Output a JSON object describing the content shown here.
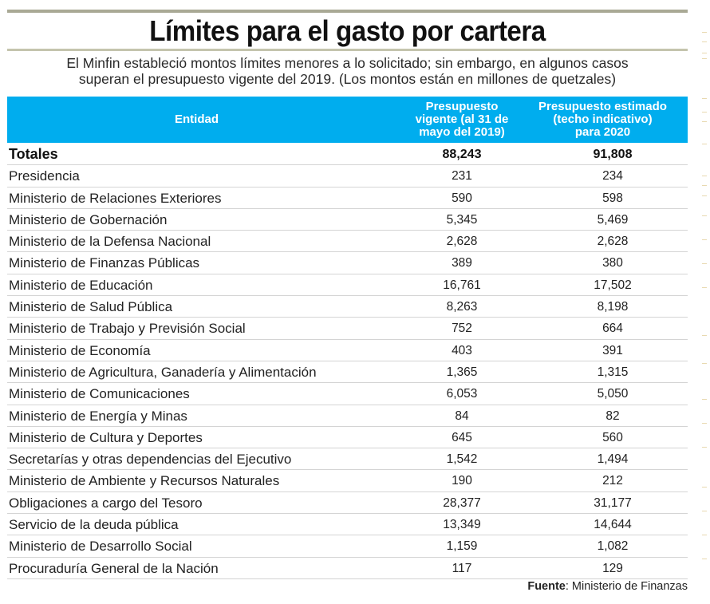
{
  "title": "Límites para el gasto por cartera",
  "subtitle_line1": "El Minfin estableció montos límites menores a lo solicitado; sin embargo, en algunos casos",
  "subtitle_line2": "superan el presupuesto vigente del 2019. (Los montos están en millones de quetzales)",
  "colors": {
    "header_bg": "#00adee",
    "rule": "#a9a995"
  },
  "source": {
    "label": "Fuente",
    "text": ": Ministerio de Finanzas"
  },
  "chart_data": {
    "type": "table",
    "title": "Límites para el gasto por cartera",
    "unit": "millones de quetzales",
    "columns": [
      "Entidad",
      "Presupuesto vigente (al 31 de mayo del 2019)",
      "Presupuesto estimado (techo indicativo) para 2020"
    ],
    "header_lines": {
      "col0": [
        "Entidad"
      ],
      "col1": [
        "Presupuesto",
        "vigente (al 31 de",
        "mayo del 2019)"
      ],
      "col2": [
        "Presupuesto estimado",
        "(techo indicativo)",
        "para 2020"
      ]
    },
    "rows": [
      {
        "entidad": "Totales",
        "vigente_2019": "88,243",
        "estimado_2020": "91,808",
        "total": true
      },
      {
        "entidad": "Presidencia",
        "vigente_2019": "231",
        "estimado_2020": "234"
      },
      {
        "entidad": "Ministerio de Relaciones Exteriores",
        "vigente_2019": "590",
        "estimado_2020": "598"
      },
      {
        "entidad": "Ministerio de Gobernación",
        "vigente_2019": "5,345",
        "estimado_2020": "5,469"
      },
      {
        "entidad": "Ministerio de la Defensa Nacional",
        "vigente_2019": "2,628",
        "estimado_2020": "2,628"
      },
      {
        "entidad": "Ministerio de Finanzas Públicas",
        "vigente_2019": "389",
        "estimado_2020": "380"
      },
      {
        "entidad": "Ministerio de Educación",
        "vigente_2019": "16,761",
        "estimado_2020": "17,502"
      },
      {
        "entidad": "Ministerio de Salud Pública",
        "vigente_2019": "8,263",
        "estimado_2020": "8,198"
      },
      {
        "entidad": "Ministerio de Trabajo y Previsión Social",
        "vigente_2019": "752",
        "estimado_2020": "664"
      },
      {
        "entidad": "Ministerio de Economía",
        "vigente_2019": "403",
        "estimado_2020": "391"
      },
      {
        "entidad": "Ministerio de Agricultura, Ganadería y Alimentación",
        "vigente_2019": "1,365",
        "estimado_2020": "1,315"
      },
      {
        "entidad": "Ministerio de Comunicaciones",
        "vigente_2019": "6,053",
        "estimado_2020": "5,050"
      },
      {
        "entidad": "Ministerio de Energía y Minas",
        "vigente_2019": "84",
        "estimado_2020": "82"
      },
      {
        "entidad": "Ministerio de Cultura y Deportes",
        "vigente_2019": "645",
        "estimado_2020": "560"
      },
      {
        "entidad": "Secretarías y otras dependencias del Ejecutivo",
        "vigente_2019": "1,542",
        "estimado_2020": "1,494"
      },
      {
        "entidad": "Ministerio de Ambiente y Recursos Naturales",
        "vigente_2019": "190",
        "estimado_2020": "212"
      },
      {
        "entidad": "Obligaciones a cargo del Tesoro",
        "vigente_2019": "28,377",
        "estimado_2020": "31,177"
      },
      {
        "entidad": "Servicio de la deuda pública",
        "vigente_2019": "13,349",
        "estimado_2020": "14,644"
      },
      {
        "entidad": "Ministerio de Desarrollo Social",
        "vigente_2019": "1,159",
        "estimado_2020": "1,082"
      },
      {
        "entidad": "Procuraduría General de la Nación",
        "vigente_2019": "117",
        "estimado_2020": "129"
      }
    ]
  }
}
